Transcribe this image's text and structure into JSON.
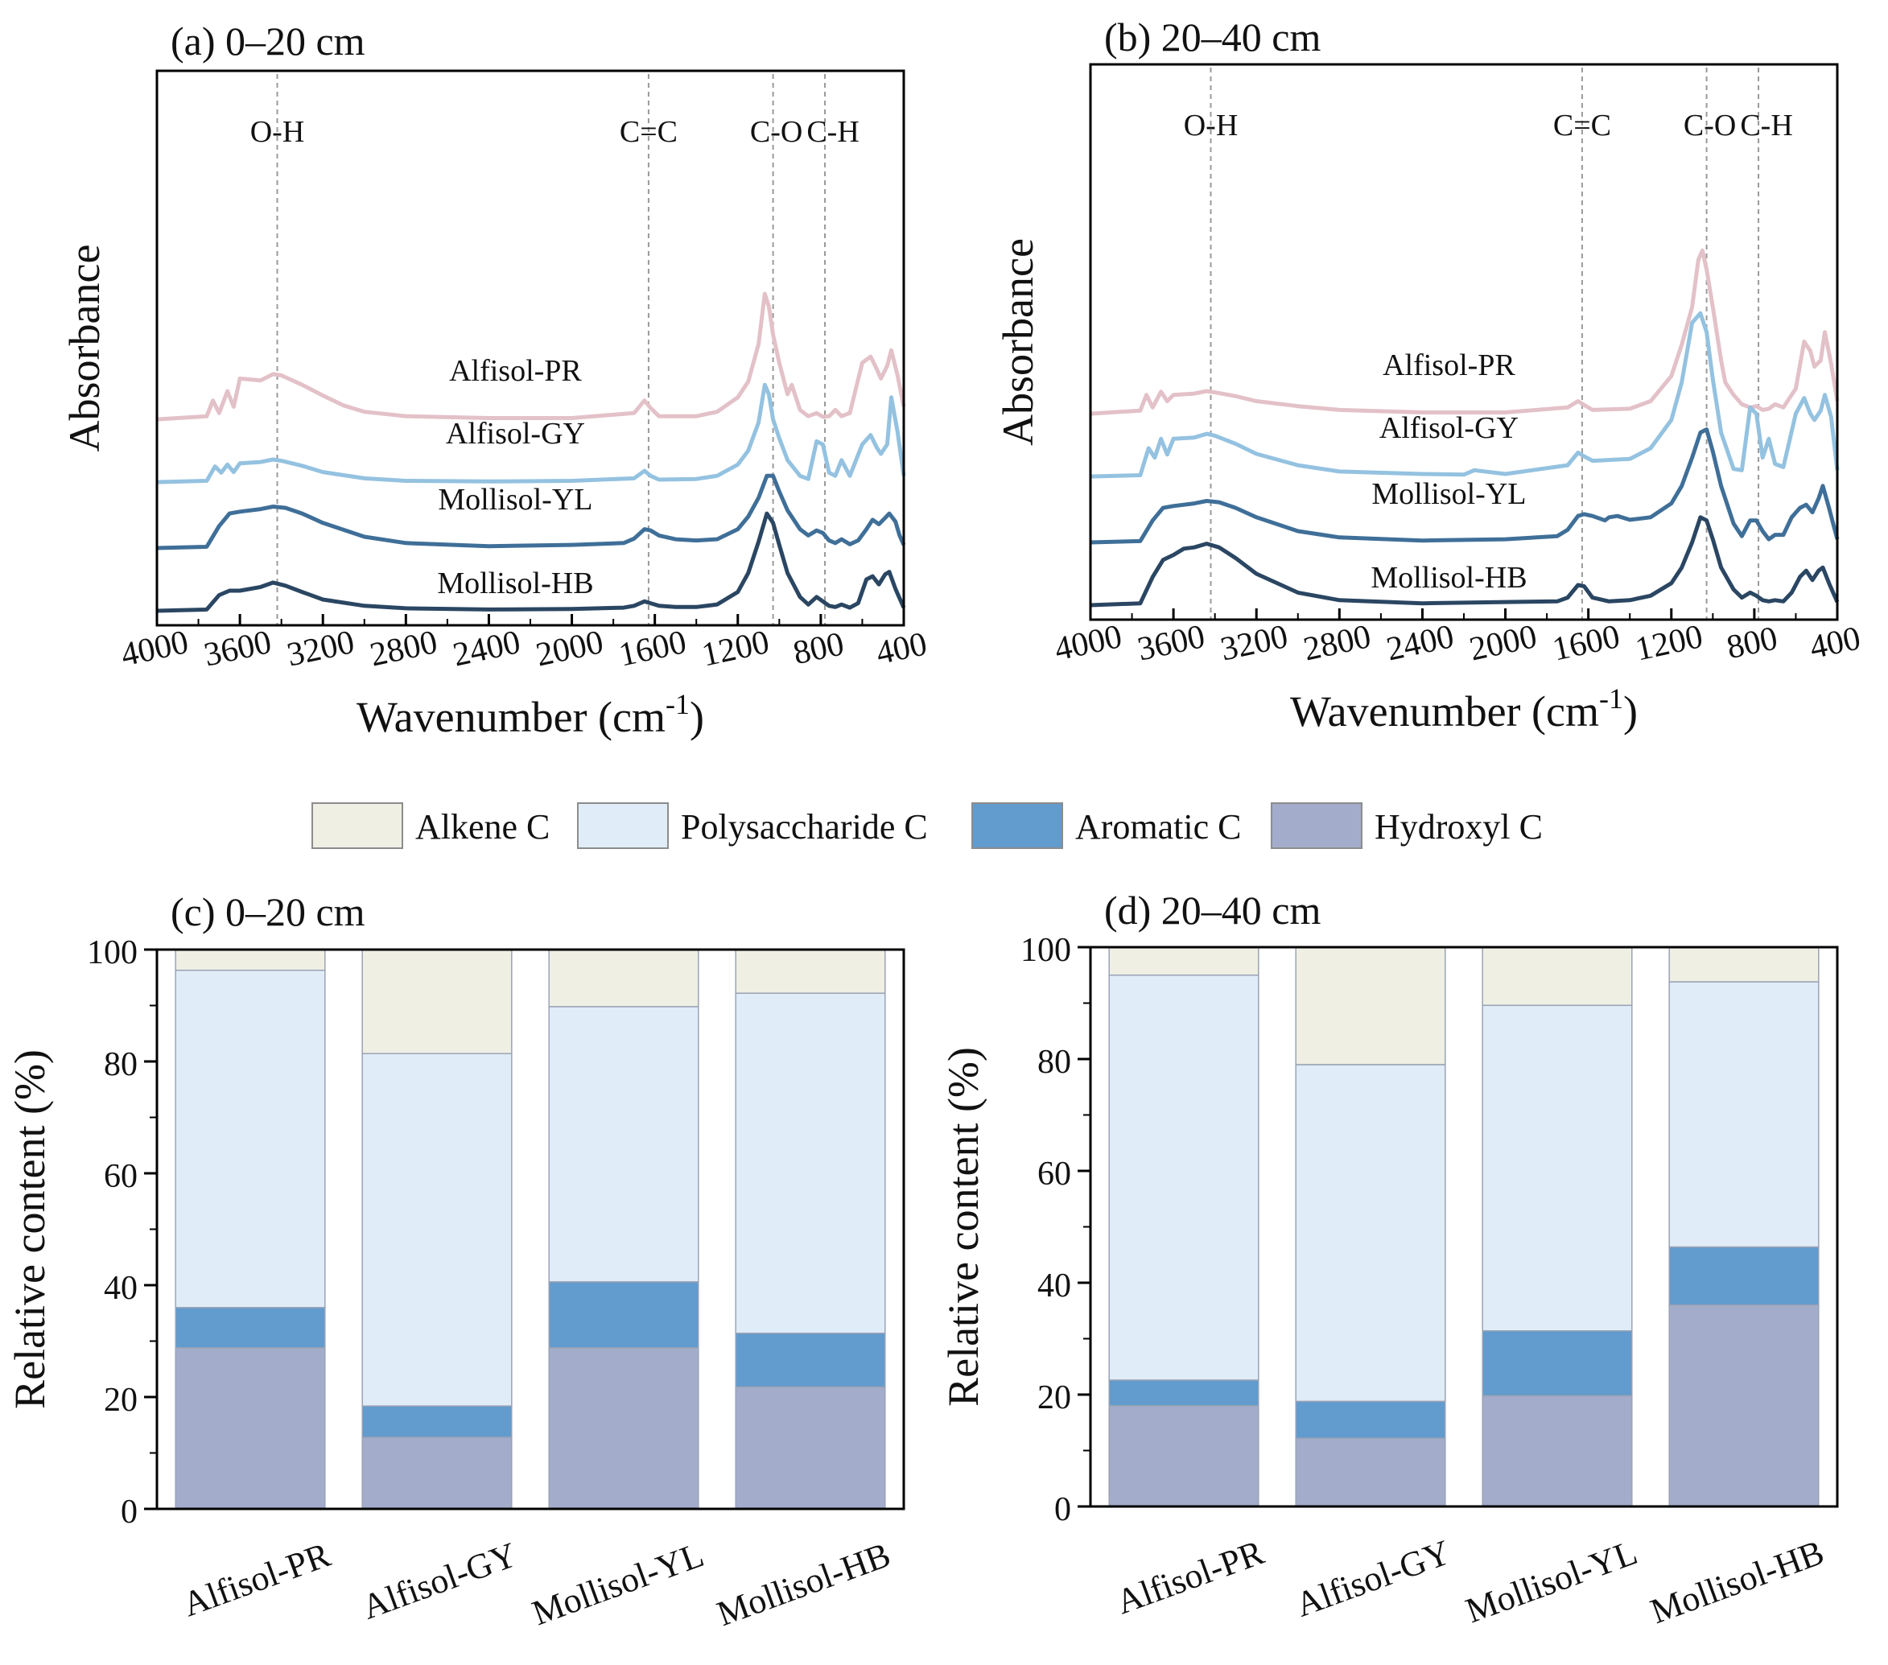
{
  "legend": [
    {
      "name": "Alkene C",
      "color": "#efefe4"
    },
    {
      "name": "Polysaccharide C",
      "color": "#e0edf8"
    },
    {
      "name": "Aromatic C",
      "color": "#629bcd"
    },
    {
      "name": "Hydroxyl C",
      "color": "#a3adcb"
    }
  ],
  "chart_data": [
    {
      "panel": "a",
      "type": "line",
      "title": "(a) 0–20 cm",
      "xlabel": "Wavenumber (cm",
      "xlabel_sup": "-1",
      "xlabel_close": ")",
      "ylabel": "Absorbance",
      "xlim": [
        4000,
        400
      ],
      "xticks": [
        4000,
        3600,
        3200,
        2800,
        2400,
        2000,
        1600,
        1200,
        800,
        400
      ],
      "bands": [
        {
          "label": "O-H",
          "x": 3420
        },
        {
          "label": "C=C",
          "x": 1630
        },
        {
          "label": "C-O",
          "x": 1030
        },
        {
          "label": "C-H",
          "x": 780
        }
      ],
      "series": [
        {
          "name": "Alfisol-PR",
          "color": "#e3c1c8",
          "offset": 3.05,
          "scale": 1.0,
          "x": [
            4000,
            3760,
            3730,
            3700,
            3660,
            3630,
            3600,
            3500,
            3440,
            3400,
            3300,
            3200,
            3100,
            3000,
            2800,
            2400,
            2000,
            1700,
            1650,
            1620,
            1580,
            1400,
            1300,
            1200,
            1150,
            1100,
            1070,
            1050,
            1030,
            1000,
            960,
            940,
            900,
            860,
            820,
            790,
            760,
            730,
            700,
            660,
            600,
            560,
            530,
            510,
            480,
            460,
            430,
            400
          ],
          "y": [
            0,
            0.05,
            0.3,
            0.1,
            0.45,
            0.2,
            0.65,
            0.62,
            0.72,
            0.7,
            0.55,
            0.38,
            0.22,
            0.12,
            0.05,
            0.02,
            0.02,
            0.1,
            0.3,
            0.18,
            0.05,
            0.05,
            0.12,
            0.35,
            0.6,
            1.2,
            2.0,
            1.8,
            1.35,
            0.9,
            0.4,
            0.55,
            0.15,
            0.05,
            0.1,
            0.04,
            0.05,
            0.15,
            0.05,
            0.1,
            0.9,
            1.0,
            0.8,
            0.65,
            0.85,
            1.1,
            0.7,
            0.2
          ]
        },
        {
          "name": "Alfisol-GY",
          "color": "#94c2e0",
          "offset": 2.05,
          "scale": 1.0,
          "x": [
            4000,
            3760,
            3720,
            3690,
            3660,
            3630,
            3600,
            3500,
            3440,
            3400,
            3300,
            3200,
            3000,
            2800,
            2400,
            2000,
            1700,
            1650,
            1620,
            1580,
            1400,
            1300,
            1200,
            1150,
            1100,
            1070,
            1050,
            1030,
            1000,
            960,
            900,
            860,
            820,
            790,
            760,
            730,
            700,
            660,
            600,
            560,
            530,
            510,
            480,
            460,
            430,
            400
          ],
          "y": [
            0,
            0.02,
            0.25,
            0.15,
            0.28,
            0.16,
            0.3,
            0.32,
            0.36,
            0.34,
            0.26,
            0.16,
            0.06,
            0.02,
            0.01,
            0.02,
            0.06,
            0.18,
            0.1,
            0.04,
            0.05,
            0.1,
            0.28,
            0.5,
            0.95,
            1.55,
            1.4,
            1.0,
            0.7,
            0.35,
            0.1,
            0.05,
            0.65,
            0.6,
            0.15,
            0.1,
            0.35,
            0.1,
            0.6,
            0.75,
            0.55,
            0.45,
            0.6,
            1.35,
            0.8,
            0.1
          ]
        },
        {
          "name": "Mollisol-YL",
          "color": "#3f6f98",
          "offset": 1.0,
          "scale": 1.0,
          "x": [
            4000,
            3760,
            3700,
            3650,
            3600,
            3500,
            3440,
            3380,
            3300,
            3200,
            3000,
            2800,
            2400,
            2000,
            1750,
            1700,
            1650,
            1620,
            1580,
            1500,
            1400,
            1300,
            1200,
            1150,
            1100,
            1060,
            1030,
            1000,
            960,
            900,
            860,
            820,
            790,
            760,
            730,
            700,
            660,
            620,
            580,
            550,
            520,
            490,
            470,
            440,
            420,
            400
          ],
          "y": [
            0,
            0.02,
            0.35,
            0.55,
            0.58,
            0.62,
            0.66,
            0.64,
            0.55,
            0.4,
            0.18,
            0.08,
            0.03,
            0.05,
            0.08,
            0.15,
            0.3,
            0.28,
            0.2,
            0.14,
            0.12,
            0.14,
            0.3,
            0.5,
            0.8,
            1.15,
            1.15,
            0.9,
            0.6,
            0.3,
            0.2,
            0.28,
            0.24,
            0.12,
            0.08,
            0.14,
            0.06,
            0.12,
            0.3,
            0.45,
            0.38,
            0.48,
            0.55,
            0.42,
            0.2,
            0.05
          ]
        },
        {
          "name": "Mollisol-HB",
          "color": "#2a4662",
          "offset": 0.0,
          "scale": 1.0,
          "x": [
            4000,
            3760,
            3700,
            3650,
            3600,
            3500,
            3440,
            3380,
            3300,
            3200,
            3000,
            2800,
            2400,
            2000,
            1750,
            1700,
            1650,
            1620,
            1580,
            1500,
            1400,
            1300,
            1200,
            1150,
            1100,
            1060,
            1030,
            1000,
            960,
            900,
            860,
            820,
            790,
            760,
            730,
            700,
            660,
            620,
            580,
            550,
            520,
            490,
            470,
            440,
            420,
            400
          ],
          "y": [
            0,
            0.02,
            0.25,
            0.32,
            0.32,
            0.38,
            0.45,
            0.4,
            0.3,
            0.18,
            0.08,
            0.04,
            0.02,
            0.03,
            0.05,
            0.08,
            0.15,
            0.12,
            0.08,
            0.06,
            0.06,
            0.1,
            0.3,
            0.6,
            1.1,
            1.55,
            1.4,
            1.05,
            0.6,
            0.22,
            0.1,
            0.22,
            0.15,
            0.08,
            0.06,
            0.1,
            0.05,
            0.12,
            0.5,
            0.55,
            0.42,
            0.58,
            0.62,
            0.35,
            0.2,
            0.05
          ]
        }
      ]
    },
    {
      "panel": "b",
      "type": "line",
      "title": "(b) 20–40 cm",
      "xlabel": "Wavenumber (cm",
      "xlabel_sup": "-1",
      "xlabel_close": ")",
      "ylabel": "Absorbance",
      "xlim": [
        4000,
        400
      ],
      "xticks": [
        4000,
        3600,
        3200,
        2800,
        2400,
        2000,
        1600,
        1200,
        800,
        400
      ],
      "bands": [
        {
          "label": "O-H",
          "x": 3420
        },
        {
          "label": "C=C",
          "x": 1630
        },
        {
          "label": "C-O",
          "x": 1030
        },
        {
          "label": "C-H",
          "x": 780
        }
      ],
      "series": [
        {
          "name": "Alfisol-PR",
          "color": "#e3c1c8",
          "offset": 3.05,
          "scale": 1.0,
          "x": [
            4000,
            3760,
            3730,
            3700,
            3660,
            3630,
            3600,
            3500,
            3440,
            3400,
            3300,
            3200,
            3000,
            2800,
            2400,
            2000,
            1700,
            1650,
            1620,
            1580,
            1400,
            1300,
            1200,
            1150,
            1100,
            1070,
            1050,
            1030,
            1000,
            960,
            940,
            900,
            860,
            820,
            790,
            760,
            730,
            700,
            660,
            600,
            560,
            530,
            510,
            480,
            460,
            430,
            400
          ],
          "y": [
            0,
            0.05,
            0.3,
            0.1,
            0.35,
            0.2,
            0.3,
            0.32,
            0.36,
            0.34,
            0.28,
            0.2,
            0.12,
            0.06,
            0.02,
            0.02,
            0.1,
            0.2,
            0.14,
            0.06,
            0.08,
            0.2,
            0.6,
            1.1,
            1.7,
            2.45,
            2.6,
            2.3,
            1.7,
            0.85,
            0.5,
            0.3,
            0.15,
            0.1,
            0.12,
            0.06,
            0.08,
            0.15,
            0.1,
            0.4,
            1.15,
            1.0,
            0.75,
            0.85,
            1.3,
            0.8,
            0.2
          ]
        },
        {
          "name": "Alfisol-GY",
          "color": "#94c2e0",
          "offset": 2.05,
          "scale": 1.0,
          "x": [
            4000,
            3760,
            3720,
            3690,
            3660,
            3630,
            3600,
            3500,
            3440,
            3400,
            3300,
            3200,
            3000,
            2800,
            2400,
            2200,
            2150,
            2000,
            1700,
            1650,
            1620,
            1580,
            1400,
            1300,
            1200,
            1150,
            1100,
            1060,
            1030,
            1000,
            960,
            900,
            860,
            820,
            790,
            760,
            730,
            700,
            660,
            600,
            560,
            530,
            510,
            480,
            460,
            430,
            400
          ],
          "y": [
            0,
            0.02,
            0.45,
            0.3,
            0.6,
            0.35,
            0.6,
            0.62,
            0.68,
            0.65,
            0.52,
            0.36,
            0.18,
            0.08,
            0.04,
            0.03,
            0.1,
            0.04,
            0.18,
            0.38,
            0.32,
            0.25,
            0.28,
            0.45,
            0.9,
            1.5,
            2.45,
            2.6,
            2.3,
            1.55,
            0.7,
            0.12,
            0.1,
            1.1,
            1.0,
            0.3,
            0.6,
            0.2,
            0.15,
            1.0,
            1.25,
            1.0,
            0.9,
            1.05,
            1.3,
            0.95,
            0.1
          ]
        },
        {
          "name": "Mollisol-YL",
          "color": "#3f6f98",
          "offset": 1.0,
          "scale": 1.0,
          "x": [
            4000,
            3760,
            3700,
            3650,
            3600,
            3500,
            3440,
            3380,
            3300,
            3200,
            3000,
            2800,
            2400,
            2000,
            1750,
            1700,
            1650,
            1620,
            1580,
            1520,
            1500,
            1460,
            1400,
            1300,
            1200,
            1150,
            1100,
            1060,
            1030,
            1000,
            960,
            900,
            860,
            820,
            790,
            760,
            730,
            700,
            660,
            620,
            580,
            550,
            520,
            490,
            470,
            440,
            420,
            400
          ],
          "y": [
            0,
            0.02,
            0.35,
            0.55,
            0.58,
            0.62,
            0.66,
            0.64,
            0.55,
            0.4,
            0.18,
            0.08,
            0.03,
            0.05,
            0.1,
            0.2,
            0.42,
            0.45,
            0.42,
            0.35,
            0.4,
            0.42,
            0.36,
            0.4,
            0.62,
            0.9,
            1.35,
            1.75,
            1.8,
            1.45,
            0.9,
            0.3,
            0.1,
            0.35,
            0.35,
            0.18,
            0.05,
            0.12,
            0.12,
            0.4,
            0.55,
            0.6,
            0.48,
            0.7,
            0.9,
            0.55,
            0.3,
            0.05
          ]
        },
        {
          "name": "Mollisol-HB",
          "color": "#2a4662",
          "offset": 0.0,
          "scale": 1.0,
          "x": [
            4000,
            3760,
            3700,
            3650,
            3600,
            3550,
            3500,
            3440,
            3380,
            3300,
            3200,
            3000,
            2800,
            2400,
            2000,
            1750,
            1700,
            1650,
            1620,
            1580,
            1500,
            1400,
            1300,
            1200,
            1150,
            1100,
            1060,
            1030,
            1000,
            960,
            900,
            860,
            820,
            790,
            760,
            730,
            700,
            660,
            620,
            580,
            550,
            520,
            490,
            470,
            440,
            420,
            400
          ],
          "y": [
            0,
            0.03,
            0.45,
            0.72,
            0.8,
            0.9,
            0.92,
            0.98,
            0.92,
            0.75,
            0.5,
            0.2,
            0.08,
            0.03,
            0.05,
            0.06,
            0.12,
            0.32,
            0.3,
            0.12,
            0.06,
            0.08,
            0.15,
            0.35,
            0.6,
            1.0,
            1.4,
            1.35,
            1.05,
            0.6,
            0.25,
            0.12,
            0.2,
            0.15,
            0.08,
            0.06,
            0.08,
            0.06,
            0.2,
            0.45,
            0.55,
            0.4,
            0.55,
            0.6,
            0.35,
            0.2,
            0.05
          ]
        }
      ]
    },
    {
      "panel": "c",
      "type": "bar",
      "stacked": true,
      "title": "(c) 0–20 cm",
      "xlabel": "",
      "ylabel": "Relative content (%)",
      "ylim": [
        0,
        100
      ],
      "yticks": [
        0,
        20,
        40,
        60,
        80,
        100
      ],
      "categories": [
        "Alfisol-PR",
        "Alfisol-GY",
        "Mollisol-YL",
        "Mollisol-HB"
      ],
      "series": [
        {
          "name": "Hydroxyl C",
          "values": [
            28.8,
            12.8,
            28.8,
            21.8
          ]
        },
        {
          "name": "Aromatic C",
          "values": [
            7.2,
            5.6,
            11.8,
            9.6
          ]
        },
        {
          "name": "Polysaccharide C",
          "values": [
            60.3,
            63.0,
            49.2,
            60.8
          ]
        },
        {
          "name": "Alkene C",
          "values": [
            3.7,
            18.6,
            10.2,
            7.8
          ]
        }
      ]
    },
    {
      "panel": "d",
      "type": "bar",
      "stacked": true,
      "title": "(d) 20–40 cm",
      "xlabel": "",
      "ylabel": "Relative content (%)",
      "ylim": [
        0,
        100
      ],
      "yticks": [
        0,
        20,
        40,
        60,
        80,
        100
      ],
      "categories": [
        "Alfisol-PR",
        "Alfisol-GY",
        "Mollisol-YL",
        "Mollisol-HB"
      ],
      "series": [
        {
          "name": "Hydroxyl C",
          "values": [
            18.0,
            12.2,
            19.8,
            36.0
          ]
        },
        {
          "name": "Aromatic C",
          "values": [
            4.6,
            6.6,
            11.6,
            10.4
          ]
        },
        {
          "name": "Polysaccharide C",
          "values": [
            72.4,
            60.2,
            58.2,
            47.4
          ]
        },
        {
          "name": "Alkene C",
          "values": [
            5.0,
            21.0,
            10.4,
            6.2
          ]
        }
      ]
    }
  ]
}
